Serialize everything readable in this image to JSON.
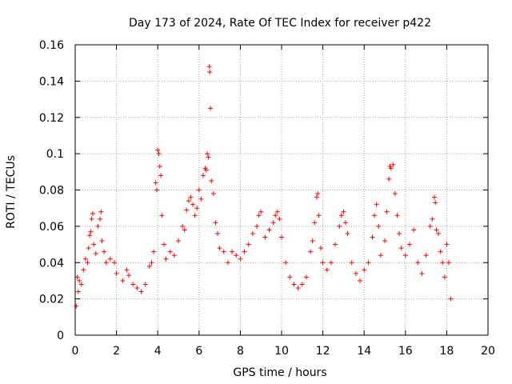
{
  "chart_data": {
    "type": "scatter",
    "title": "Day 173 of 2024, Rate Of TEC Index for receiver p422",
    "xlabel": "GPS time / hours",
    "ylabel": "ROTI / TECUs",
    "xlim": [
      0,
      20
    ],
    "ylim": [
      0,
      0.16
    ],
    "x_ticks": [
      0,
      2,
      4,
      6,
      8,
      10,
      12,
      14,
      16,
      18,
      20
    ],
    "y_ticks": [
      0,
      0.02,
      0.04,
      0.06,
      0.08,
      0.1,
      0.12,
      0.14,
      0.16
    ],
    "x_tick_labels": [
      "0",
      "2",
      "4",
      "6",
      "8",
      "10",
      "12",
      "14",
      "16",
      "18",
      "20"
    ],
    "y_tick_labels": [
      "0",
      "0.02",
      "0.04",
      "0.06",
      "0.08",
      "0.1",
      "0.12",
      "0.14",
      "0.16"
    ],
    "grid": true,
    "marker": "+",
    "color": "#ff0000",
    "series": [
      {
        "name": "ROTI",
        "points": [
          [
            0.05,
            0.016
          ],
          [
            0.1,
            0.032
          ],
          [
            0.15,
            0.024
          ],
          [
            0.2,
            0.03
          ],
          [
            0.3,
            0.028
          ],
          [
            0.4,
            0.036
          ],
          [
            0.5,
            0.042
          ],
          [
            0.6,
            0.04
          ],
          [
            0.65,
            0.048
          ],
          [
            0.7,
            0.055
          ],
          [
            0.75,
            0.057
          ],
          [
            0.8,
            0.064
          ],
          [
            0.85,
            0.067
          ],
          [
            0.9,
            0.05
          ],
          [
            1.0,
            0.045
          ],
          [
            1.1,
            0.06
          ],
          [
            1.2,
            0.064
          ],
          [
            1.25,
            0.068
          ],
          [
            1.3,
            0.052
          ],
          [
            1.4,
            0.046
          ],
          [
            1.5,
            0.04
          ],
          [
            1.7,
            0.042
          ],
          [
            1.9,
            0.04
          ],
          [
            2.0,
            0.034
          ],
          [
            2.3,
            0.03
          ],
          [
            2.5,
            0.036
          ],
          [
            2.6,
            0.033
          ],
          [
            2.8,
            0.028
          ],
          [
            3.0,
            0.026
          ],
          [
            3.2,
            0.024
          ],
          [
            3.4,
            0.028
          ],
          [
            3.6,
            0.038
          ],
          [
            3.7,
            0.04
          ],
          [
            3.8,
            0.046
          ],
          [
            3.9,
            0.084
          ],
          [
            3.95,
            0.08
          ],
          [
            4.0,
            0.102
          ],
          [
            4.05,
            0.1
          ],
          [
            4.1,
            0.093
          ],
          [
            4.15,
            0.088
          ],
          [
            4.2,
            0.066
          ],
          [
            4.3,
            0.05
          ],
          [
            4.4,
            0.042
          ],
          [
            4.6,
            0.046
          ],
          [
            4.8,
            0.044
          ],
          [
            5.0,
            0.052
          ],
          [
            5.2,
            0.06
          ],
          [
            5.3,
            0.058
          ],
          [
            5.4,
            0.069
          ],
          [
            5.5,
            0.074
          ],
          [
            5.6,
            0.076
          ],
          [
            5.7,
            0.072
          ],
          [
            5.8,
            0.066
          ],
          [
            5.9,
            0.07
          ],
          [
            6.0,
            0.08
          ],
          [
            6.1,
            0.075
          ],
          [
            6.2,
            0.088
          ],
          [
            6.3,
            0.092
          ],
          [
            6.35,
            0.091
          ],
          [
            6.4,
            0.1
          ],
          [
            6.45,
            0.098
          ],
          [
            6.5,
            0.148
          ],
          [
            6.52,
            0.145
          ],
          [
            6.55,
            0.125
          ],
          [
            6.6,
            0.085
          ],
          [
            6.7,
            0.078
          ],
          [
            6.8,
            0.062
          ],
          [
            6.9,
            0.056
          ],
          [
            7.0,
            0.048
          ],
          [
            7.2,
            0.046
          ],
          [
            7.4,
            0.04
          ],
          [
            7.6,
            0.046
          ],
          [
            7.8,
            0.044
          ],
          [
            8.0,
            0.042
          ],
          [
            8.2,
            0.046
          ],
          [
            8.4,
            0.05
          ],
          [
            8.6,
            0.056
          ],
          [
            8.8,
            0.06
          ],
          [
            8.9,
            0.066
          ],
          [
            9.0,
            0.068
          ],
          [
            9.2,
            0.054
          ],
          [
            9.4,
            0.058
          ],
          [
            9.6,
            0.062
          ],
          [
            9.7,
            0.066
          ],
          [
            9.8,
            0.068
          ],
          [
            9.9,
            0.064
          ],
          [
            10.0,
            0.054
          ],
          [
            10.2,
            0.04
          ],
          [
            10.4,
            0.032
          ],
          [
            10.6,
            0.028
          ],
          [
            10.8,
            0.026
          ],
          [
            11.0,
            0.028
          ],
          [
            11.2,
            0.032
          ],
          [
            11.4,
            0.046
          ],
          [
            11.5,
            0.052
          ],
          [
            11.6,
            0.062
          ],
          [
            11.7,
            0.076
          ],
          [
            11.75,
            0.078
          ],
          [
            11.8,
            0.066
          ],
          [
            11.9,
            0.048
          ],
          [
            12.0,
            0.04
          ],
          [
            12.2,
            0.036
          ],
          [
            12.4,
            0.04
          ],
          [
            12.6,
            0.05
          ],
          [
            12.8,
            0.06
          ],
          [
            12.9,
            0.066
          ],
          [
            13.0,
            0.068
          ],
          [
            13.1,
            0.062
          ],
          [
            13.2,
            0.056
          ],
          [
            13.4,
            0.04
          ],
          [
            13.6,
            0.034
          ],
          [
            13.8,
            0.03
          ],
          [
            14.0,
            0.036
          ],
          [
            14.2,
            0.04
          ],
          [
            14.4,
            0.054
          ],
          [
            14.5,
            0.066
          ],
          [
            14.6,
            0.072
          ],
          [
            14.7,
            0.06
          ],
          [
            14.8,
            0.044
          ],
          [
            15.0,
            0.052
          ],
          [
            15.1,
            0.068
          ],
          [
            15.2,
            0.086
          ],
          [
            15.25,
            0.093
          ],
          [
            15.3,
            0.092
          ],
          [
            15.4,
            0.094
          ],
          [
            15.5,
            0.078
          ],
          [
            15.6,
            0.066
          ],
          [
            15.7,
            0.056
          ],
          [
            15.8,
            0.048
          ],
          [
            16.0,
            0.044
          ],
          [
            16.2,
            0.05
          ],
          [
            16.4,
            0.058
          ],
          [
            16.6,
            0.04
          ],
          [
            16.8,
            0.034
          ],
          [
            17.0,
            0.044
          ],
          [
            17.2,
            0.06
          ],
          [
            17.3,
            0.064
          ],
          [
            17.4,
            0.076
          ],
          [
            17.45,
            0.073
          ],
          [
            17.5,
            0.058
          ],
          [
            17.6,
            0.056
          ],
          [
            17.7,
            0.046
          ],
          [
            17.8,
            0.04
          ],
          [
            17.9,
            0.032
          ],
          [
            18.0,
            0.05
          ],
          [
            18.1,
            0.04
          ],
          [
            18.2,
            0.02
          ]
        ]
      }
    ]
  }
}
